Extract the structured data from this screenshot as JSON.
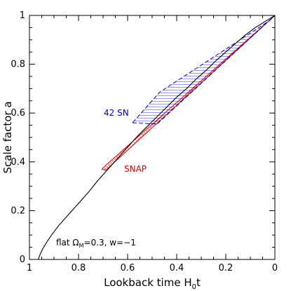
{
  "chart_data": {
    "type": "line",
    "xlabel_main": "Lookback time H",
    "xlabel_sub": "0",
    "xlabel_tail": "t",
    "ylabel": "Scale factor a",
    "xlim": [
      1,
      0
    ],
    "ylim": [
      0,
      1
    ],
    "x_ticks": [
      "1",
      "0.8",
      "0.6",
      "0.4",
      "0.2",
      "0"
    ],
    "y_ticks": [
      "0",
      "0.2",
      "0.4",
      "0.6",
      "0.8",
      "1"
    ],
    "annotation": {
      "prefix": "flat Ω",
      "sub": "M",
      "suffix": "=0.3, w=−1"
    },
    "series": [
      {
        "name": "",
        "color": "#000000",
        "style": "solid",
        "x": [
          0.964,
          0.96,
          0.955,
          0.945,
          0.93,
          0.91,
          0.88,
          0.84,
          0.8,
          0.76,
          0.72,
          0.68,
          0.64,
          0.6,
          0.56,
          0.52,
          0.48,
          0.44,
          0.4,
          0.36,
          0.32,
          0.28,
          0.24,
          0.2,
          0.16,
          0.12,
          0.08,
          0.04,
          0.0
        ],
        "y": [
          0.0,
          0.012,
          0.025,
          0.045,
          0.07,
          0.1,
          0.14,
          0.185,
          0.23,
          0.275,
          0.325,
          0.37,
          0.415,
          0.46,
          0.505,
          0.545,
          0.585,
          0.625,
          0.665,
          0.7,
          0.74,
          0.775,
          0.815,
          0.85,
          0.885,
          0.92,
          0.95,
          0.975,
          1.0
        ]
      }
    ],
    "regions": [
      {
        "name": "SNAP",
        "color": "#dd0000",
        "polygon": [
          [
            0.705,
            0.37
          ],
          [
            0.69,
            0.365
          ],
          [
            0.0,
            1.0
          ],
          [
            0.005,
            0.995
          ],
          [
            0.69,
            0.385
          ]
        ]
      },
      {
        "name": "42 SN",
        "color": "#0000cc",
        "polygon": [
          [
            0.58,
            0.56
          ],
          [
            0.48,
            0.555
          ],
          [
            0.0,
            1.0
          ],
          [
            0.02,
            0.98
          ],
          [
            0.47,
            0.685
          ]
        ]
      }
    ]
  }
}
